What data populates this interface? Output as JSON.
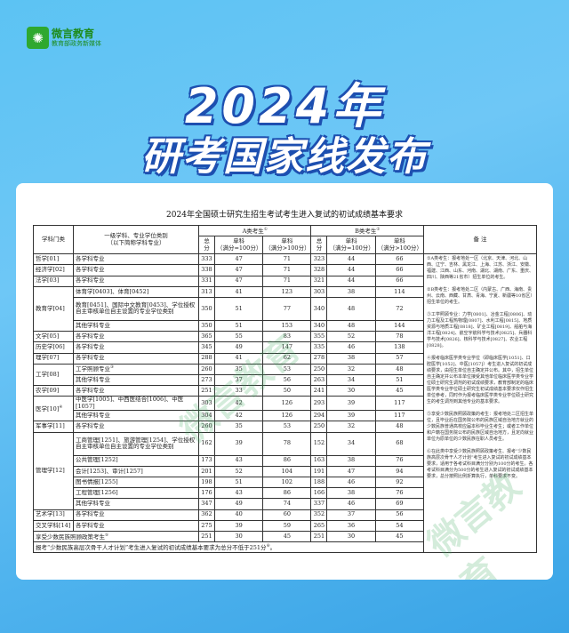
{
  "logo": {
    "name": "微言教育",
    "tagline": "教育部政务新媒体"
  },
  "headline": {
    "line1": "2024年",
    "line2": "研考国家线发布"
  },
  "table": {
    "title": "2024年全国硕士研究生招生考试考生进入复试的初试成绩基本要求",
    "headers": {
      "category": "学科门类",
      "subject": "一级学科、专业学位类别",
      "subject_note": "（以下简称学科专业）",
      "a": "A类考生",
      "a_sup": "①",
      "b": "B类考生",
      "b_sup": "②",
      "total": "总分",
      "single100": "单科",
      "single100_note": "（满分=100分）",
      "single_gt100": "单科",
      "single_gt100_note": "（满分>100分）",
      "remarks": "备 注"
    },
    "rows": [
      {
        "category": "哲学[01]",
        "span": 1,
        "subject": "各学科专业",
        "a": [
          "333",
          "47",
          "71"
        ],
        "b": [
          "323",
          "44",
          "66"
        ]
      },
      {
        "category": "经济学[02]",
        "span": 1,
        "subject": "各学科专业",
        "a": [
          "338",
          "47",
          "71"
        ],
        "b": [
          "328",
          "44",
          "66"
        ]
      },
      {
        "category": "法学[03]",
        "span": 1,
        "subject": "各学科专业",
        "a": [
          "331",
          "47",
          "71"
        ],
        "b": [
          "321",
          "44",
          "66"
        ]
      },
      {
        "category": "教育学[04]",
        "span": 3,
        "subject": "体育学[0403]、体育[0452]",
        "a": [
          "313",
          "41",
          "123"
        ],
        "b": [
          "303",
          "38",
          "114"
        ]
      },
      {
        "subject": "教育[0451]、国际中文教育[0453]、学位授权自主审核单位自主设置的专业学位类别",
        "tall": true,
        "a": [
          "350",
          "51",
          "77"
        ],
        "b": [
          "340",
          "48",
          "72"
        ]
      },
      {
        "subject": "其他学科专业",
        "a": [
          "350",
          "51",
          "153"
        ],
        "b": [
          "340",
          "48",
          "144"
        ]
      },
      {
        "category": "文学[05]",
        "span": 1,
        "subject": "各学科专业",
        "a": [
          "365",
          "55",
          "83"
        ],
        "b": [
          "355",
          "52",
          "78"
        ]
      },
      {
        "category": "历史学[06]",
        "span": 1,
        "subject": "各学科专业",
        "a": [
          "345",
          "49",
          "147"
        ],
        "b": [
          "335",
          "46",
          "138"
        ]
      },
      {
        "category": "理学[07]",
        "span": 1,
        "subject": "各学科专业",
        "a": [
          "288",
          "41",
          "62"
        ],
        "b": [
          "278",
          "38",
          "57"
        ]
      },
      {
        "category": "工学[08]",
        "span": 2,
        "subject": "工学照顾专业",
        "sup": "③",
        "a": [
          "260",
          "35",
          "53"
        ],
        "b": [
          "250",
          "32",
          "48"
        ]
      },
      {
        "subject": "其他学科专业",
        "a": [
          "273",
          "37",
          "56"
        ],
        "b": [
          "263",
          "34",
          "51"
        ]
      },
      {
        "category": "农学[09]",
        "span": 1,
        "subject": "各学科专业",
        "a": [
          "251",
          "33",
          "50"
        ],
        "b": [
          "241",
          "30",
          "45"
        ]
      },
      {
        "category": "医学[10]",
        "category_sup": "④",
        "span": 2,
        "subject": "中医学[1005]、中西医结合[1006]、中医[1057]",
        "a": [
          "303",
          "42",
          "126"
        ],
        "b": [
          "293",
          "39",
          "117"
        ]
      },
      {
        "subject": "其他学科专业",
        "a": [
          "304",
          "42",
          "126"
        ],
        "b": [
          "294",
          "39",
          "117"
        ]
      },
      {
        "category": "军事学[11]",
        "span": 1,
        "subject": "各学科专业",
        "a": [
          "260",
          "35",
          "53"
        ],
        "b": [
          "250",
          "32",
          "48"
        ]
      },
      {
        "category": "管理学[12]",
        "span": 6,
        "subject": "工商管理[1251]、旅游管理[1254]、学位授权自主审核单位自主设置的专业学位类别",
        "tall": true,
        "a": [
          "162",
          "39",
          "78"
        ],
        "b": [
          "152",
          "34",
          "68"
        ]
      },
      {
        "subject": "公共管理[1252]",
        "a": [
          "173",
          "43",
          "86"
        ],
        "b": [
          "163",
          "38",
          "76"
        ]
      },
      {
        "subject": "会计[1253]、审计[1257]",
        "a": [
          "201",
          "52",
          "104"
        ],
        "b": [
          "191",
          "47",
          "94"
        ]
      },
      {
        "subject": "图书情报[1255]",
        "a": [
          "198",
          "51",
          "102"
        ],
        "b": [
          "188",
          "46",
          "92"
        ]
      },
      {
        "subject": "工程管理[1256]",
        "a": [
          "176",
          "43",
          "86"
        ],
        "b": [
          "166",
          "38",
          "76"
        ]
      },
      {
        "subject": "其他学科专业",
        "a": [
          "347",
          "49",
          "74"
        ],
        "b": [
          "337",
          "46",
          "69"
        ]
      },
      {
        "category": "艺术学[13]",
        "span": 1,
        "subject": "各学科专业",
        "a": [
          "362",
          "40",
          "60"
        ],
        "b": [
          "352",
          "37",
          "56"
        ]
      },
      {
        "category": "交叉学科[14]",
        "span": 1,
        "subject": "各学科专业",
        "a": [
          "275",
          "39",
          "59"
        ],
        "b": [
          "265",
          "36",
          "54"
        ]
      },
      {
        "category": "享受少数民族照顾政策考生",
        "category_sup": "⑤",
        "merged": true,
        "a": [
          "251",
          "30",
          "45"
        ],
        "b": [
          "251",
          "30",
          "45"
        ]
      }
    ],
    "footnote": "报考“少数民族高层次骨干人才计划”考生进入复试的初试成绩基本要求为总分不低于251分",
    "footnote_sup": "⑥",
    "remarks": [
      "①A类考生：报考地处一区（北京、天津、河北、山西、辽宁、吉林、黑龙江、上海、江苏、浙江、安徽、福建、江西、山东、河南、湖北、湖南、广东、重庆、四川、陕西等21省市）招生单位的考生。",
      "②B类考生：报考地处二区（内蒙古、广西、海南、贵州、云南、西藏、甘肃、青海、宁夏、新疆等10省区）招生单位的考生。",
      "③工学照顾专业：力学[0801]、冶金工程[0806]、动力工程及工程热物理[0807]、水利工程[0815]、地质资源与地质工程[0818]、矿业工程[0819]、船舶与海洋工程[0824]、航空宇航科学与技术[0825]、兵器科学与技术[0826]、核科学与技术[0827]、农业工程[0828]。",
      "④报考临床医学类专业学位（即临床医学[1051]、口腔医学[1052]、中医[1057]）考生进入复试的初试成绩要求，由招生单位自主确定并公布。其中，招生单位自主确定并公布本单位接受其他单位临床医学类专业学位硕士研究生调剂的初试成绩要求，教育部制定的临床医学类专业学位硕士研究生初试成绩基本要求仅作招生单位参考，同时作为报考临床医学类专业学位硕士研究生的考生调剂到其他专业的基本要求。",
      "⑤享受少数民族照顾政策的考生：报考地处二区招生单位，且毕业后在国务院公布的民族区域自治地方就业的少数民族普通高校应届本科毕业生考生；或者工作单位和户籍在国务院公布的民族区域自治地方，且定向就业单位为原单位的少数民族在职人员考生。",
      "⑥在此类中享受少数民族照顾政策考生、报考“少数民族高层次骨干人才计划”考生进入复试的初试成绩基本要求，适用于各考试科目满分分别为100分的考生。各考试科目满分为500分的考生进入复试的初试成绩基本要求，总分按照比例折算执行，单科要求不变。"
    ]
  },
  "watermark": "微言教育"
}
